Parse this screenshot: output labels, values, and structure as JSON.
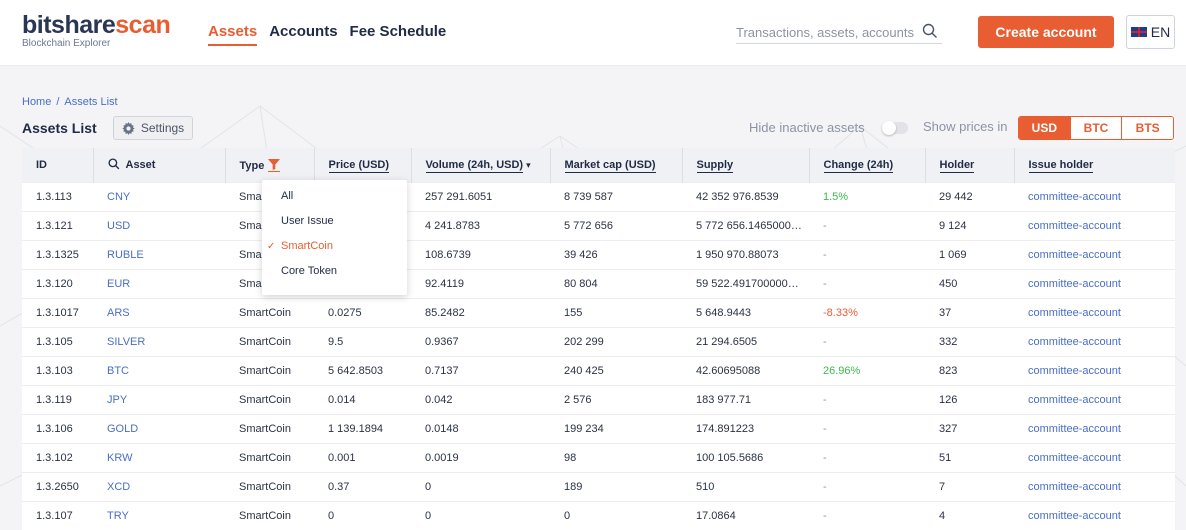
{
  "header": {
    "logo_main_a": "bitshare",
    "logo_main_b": "scan",
    "logo_sub": "Blockchain Explorer",
    "nav": [
      {
        "label": "Assets"
      },
      {
        "label": "Accounts"
      },
      {
        "label": "Fee Schedule"
      }
    ],
    "search_placeholder": "Transactions, assets, accounts",
    "create_account_label": "Create account",
    "language_label": "EN"
  },
  "breadcrumb": {
    "home": "Home",
    "separator": "/",
    "current": "Assets List"
  },
  "toolbar": {
    "title": "Assets List",
    "settings_label": "Settings",
    "hide_inactive_label": "Hide inactive assets",
    "hide_inactive_on": false,
    "show_prices_label": "Show prices in",
    "currencies": [
      "USD",
      "BTC",
      "BTS"
    ],
    "selected_currency": "USD"
  },
  "table": {
    "columns": {
      "id": "ID",
      "asset": "Asset",
      "type": "Type",
      "price": "Price (USD)",
      "volume": "Volume (24h, USD)",
      "volume_sort": "▾",
      "market_cap": "Market cap (USD)",
      "supply": "Supply",
      "change": "Change (24h)",
      "holder": "Holder",
      "issue_holder": "Issue holder"
    },
    "rows": [
      {
        "id": "1.3.113",
        "asset": "CNY",
        "type": "SmartCoin",
        "price": "",
        "volume": "257 291.6051",
        "market_cap": "8 739 587",
        "supply": "42 352 976.8539",
        "change": "1.5%",
        "change_dir": "pos",
        "holder": "29 442",
        "issue_holder": "committee-account"
      },
      {
        "id": "1.3.121",
        "asset": "USD",
        "type": "SmartCoin",
        "price": "",
        "volume": "4 241.8783",
        "market_cap": "5 772 656",
        "supply": "5 772 656.1465000…",
        "change": "-",
        "change_dir": "none",
        "holder": "9 124",
        "issue_holder": "committee-account"
      },
      {
        "id": "1.3.1325",
        "asset": "RUBLE",
        "type": "SmartCoin",
        "price": "",
        "volume": "108.6739",
        "market_cap": "39 426",
        "supply": "1 950 970.88073",
        "change": "-",
        "change_dir": "none",
        "holder": "1 069",
        "issue_holder": "committee-account"
      },
      {
        "id": "1.3.120",
        "asset": "EUR",
        "type": "SmartCoin",
        "price": "",
        "volume": "92.4119",
        "market_cap": "80 804",
        "supply": "59 522.491700000…",
        "change": "-",
        "change_dir": "none",
        "holder": "450",
        "issue_holder": "committee-account"
      },
      {
        "id": "1.3.1017",
        "asset": "ARS",
        "type": "SmartCoin",
        "price": "0.0275",
        "volume": "85.2482",
        "market_cap": "155",
        "supply": "5 648.9443",
        "change": "-8.33%",
        "change_dir": "neg",
        "holder": "37",
        "issue_holder": "committee-account"
      },
      {
        "id": "1.3.105",
        "asset": "SILVER",
        "type": "SmartCoin",
        "price": "9.5",
        "volume": "0.9367",
        "market_cap": "202 299",
        "supply": "21 294.6505",
        "change": "-",
        "change_dir": "none",
        "holder": "332",
        "issue_holder": "committee-account"
      },
      {
        "id": "1.3.103",
        "asset": "BTC",
        "type": "SmartCoin",
        "price": "5 642.8503",
        "volume": "0.7137",
        "market_cap": "240 425",
        "supply": "42.60695088",
        "change": "26.96%",
        "change_dir": "pos",
        "holder": "823",
        "issue_holder": "committee-account"
      },
      {
        "id": "1.3.119",
        "asset": "JPY",
        "type": "SmartCoin",
        "price": "0.014",
        "volume": "0.042",
        "market_cap": "2 576",
        "supply": "183 977.71",
        "change": "-",
        "change_dir": "none",
        "holder": "126",
        "issue_holder": "committee-account"
      },
      {
        "id": "1.3.106",
        "asset": "GOLD",
        "type": "SmartCoin",
        "price": "1 139.1894",
        "volume": "0.0148",
        "market_cap": "199 234",
        "supply": "174.891223",
        "change": "-",
        "change_dir": "none",
        "holder": "327",
        "issue_holder": "committee-account"
      },
      {
        "id": "1.3.102",
        "asset": "KRW",
        "type": "SmartCoin",
        "price": "0.001",
        "volume": "0.0019",
        "market_cap": "98",
        "supply": "100 105.5686",
        "change": "-",
        "change_dir": "none",
        "holder": "51",
        "issue_holder": "committee-account"
      },
      {
        "id": "1.3.2650",
        "asset": "XCD",
        "type": "SmartCoin",
        "price": "0.37",
        "volume": "0",
        "market_cap": "189",
        "supply": "510",
        "change": "-",
        "change_dir": "none",
        "holder": "7",
        "issue_holder": "committee-account"
      },
      {
        "id": "1.3.107",
        "asset": "TRY",
        "type": "SmartCoin",
        "price": "0",
        "volume": "0",
        "market_cap": "0",
        "supply": "17.0864",
        "change": "-",
        "change_dir": "none",
        "holder": "4",
        "issue_holder": "committee-account"
      }
    ]
  },
  "type_filter": {
    "options": [
      {
        "label": "All",
        "selected": false
      },
      {
        "label": "User Issue",
        "selected": false
      },
      {
        "label": "SmartCoin",
        "selected": true
      },
      {
        "label": "Core Token",
        "selected": false
      }
    ],
    "check_mark": "✓"
  },
  "colors": {
    "accent": "#e85d32",
    "link": "#4a6ec4",
    "positive": "#3bbb4a",
    "text": "#1f2a44"
  },
  "icons": [
    "search-icon",
    "gear-icon",
    "filter-icon",
    "flag-uk-icon",
    "check-icon"
  ]
}
